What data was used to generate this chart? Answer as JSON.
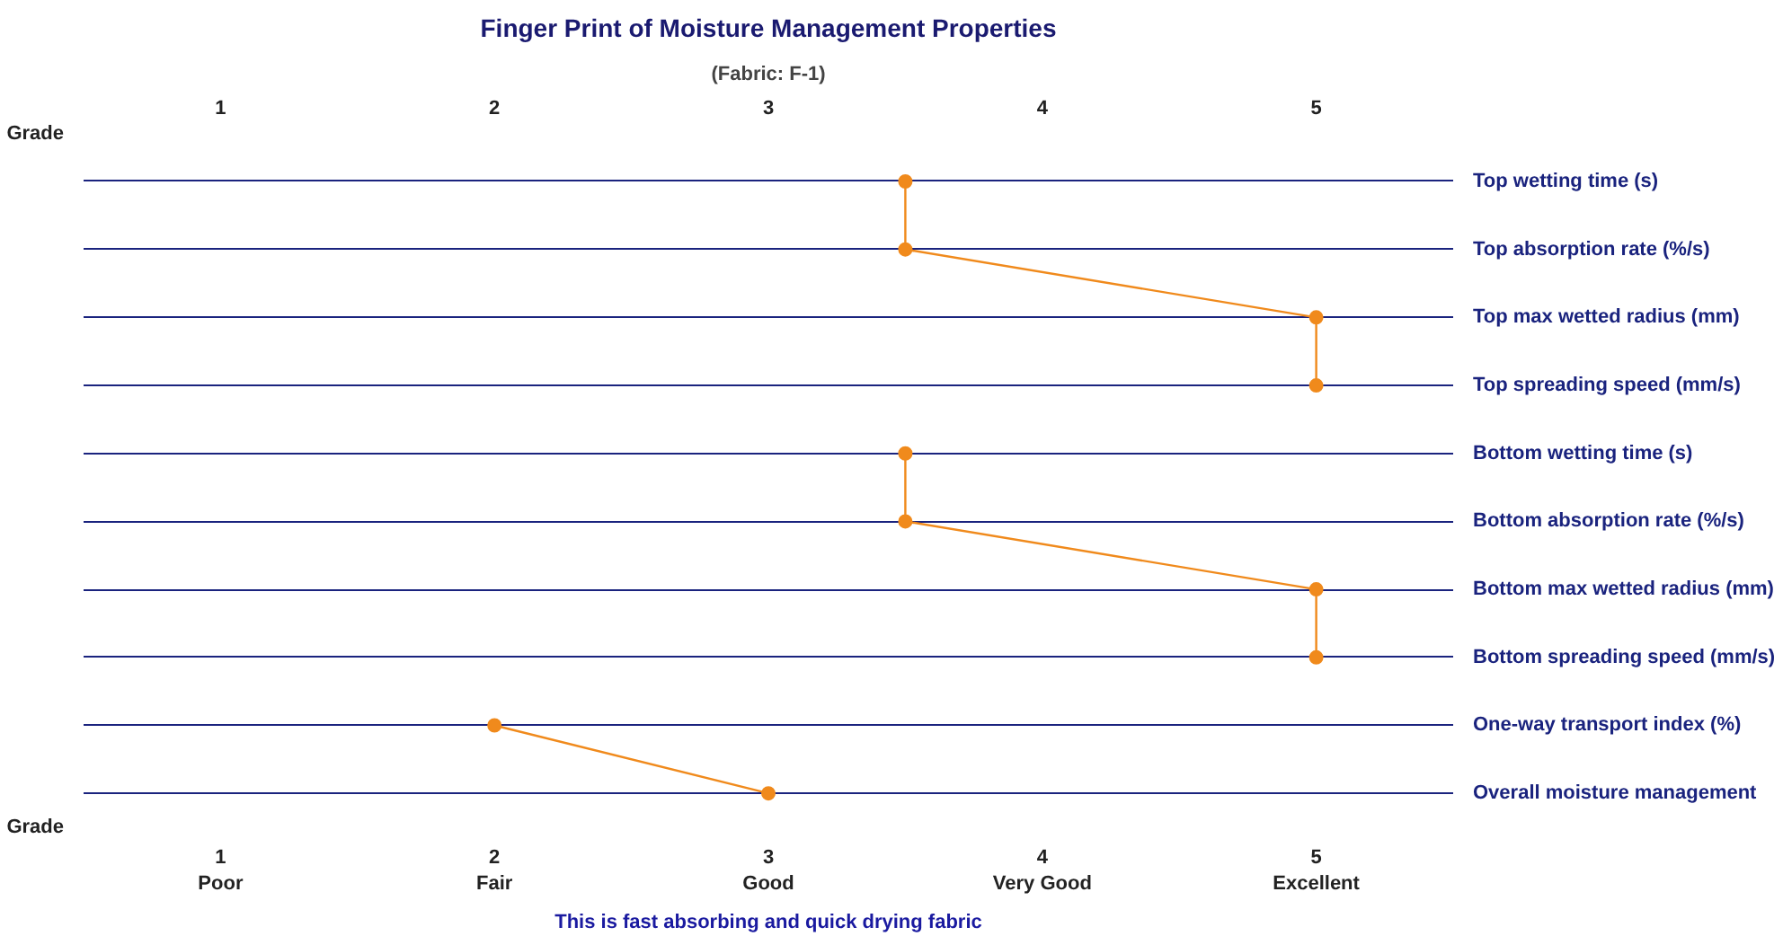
{
  "chart_data": {
    "type": "line",
    "orientation": "horizontal",
    "title": "Finger Print of Moisture Management Properties",
    "subtitle": "(Fabric: F-1)",
    "xlabel": "Grade",
    "x2label": "Grade",
    "categories": [
      "Top wetting time (s)",
      "Top absorption rate (%/s)",
      "Top max wetted radius (mm)",
      "Top spreading speed (mm/s)",
      "Bottom wetting time (s)",
      "Bottom absorption rate (%/s)",
      "Bottom max wetted radius (mm)",
      "Bottom spreading speed (mm/s)",
      "One-way transport index (%)",
      "Overall moisture management"
    ],
    "series": [
      {
        "color": "#f08a1c",
        "values": [
          3.5,
          3.5,
          5,
          5,
          null,
          null,
          null,
          null,
          null,
          null
        ]
      },
      {
        "color": "#f08a1c",
        "values": [
          null,
          null,
          null,
          null,
          3.5,
          3.5,
          5,
          5,
          null,
          null
        ]
      },
      {
        "color": "#f08a1c",
        "values": [
          null,
          null,
          null,
          null,
          null,
          null,
          null,
          null,
          2,
          3
        ]
      }
    ],
    "marker": "circle",
    "line_style": "solid",
    "grid": "y",
    "xlim": [
      0.5,
      5.5
    ],
    "xticks": [
      {
        "value": 1,
        "label": "1\nPoor"
      },
      {
        "value": 2,
        "label": "2\nFair"
      },
      {
        "value": 3,
        "label": "3\nGood"
      },
      {
        "value": 4,
        "label": "4\nVery Good"
      },
      {
        "value": 5,
        "label": "5\nExcellent"
      }
    ],
    "x2lim": [
      0.5,
      5.5
    ],
    "x2ticks": [
      1,
      2,
      3,
      4,
      5
    ],
    "annotations": [
      "This is fast absorbing and quick drying fabric"
    ]
  }
}
